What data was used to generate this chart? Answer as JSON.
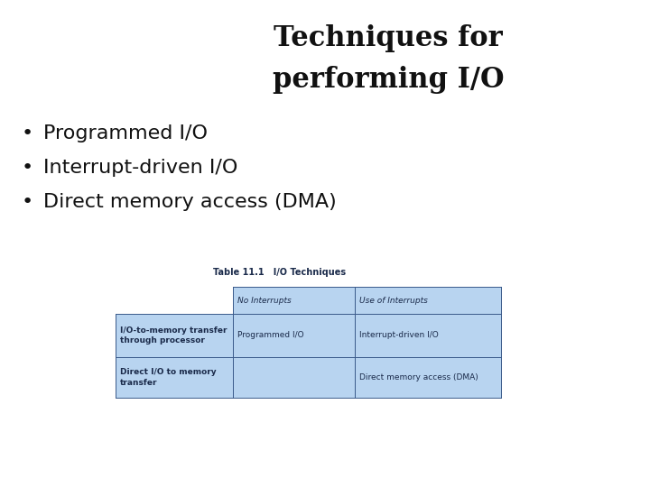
{
  "title_line1": "Techniques for",
  "title_line2": "performing I/O",
  "bullets": [
    "Programmed I/O",
    "Interrupt-driven I/O",
    "Direct memory access (DMA)"
  ],
  "table_caption": "Table 11.1   I/O Techniques",
  "table_header": [
    "",
    "No Interrupts",
    "Use of Interrupts"
  ],
  "table_rows": [
    [
      "I/O-to-memory transfer\nthrough processor",
      "Programmed I/O",
      "Interrupt-driven I/O"
    ],
    [
      "Direct I/O to memory\ntransfer",
      "",
      "Direct memory access (DMA)"
    ]
  ],
  "bg_color": "#ffffff",
  "table_fill_color": "#b8d4f0",
  "table_border_color": "#3a5a8a",
  "title_color": "#111111",
  "bullet_color": "#111111",
  "table_text_color": "#1a2a4a",
  "title_fontsize": 22,
  "bullet_fontsize": 16,
  "table_caption_fontsize": 7,
  "table_fontsize": 6.5
}
